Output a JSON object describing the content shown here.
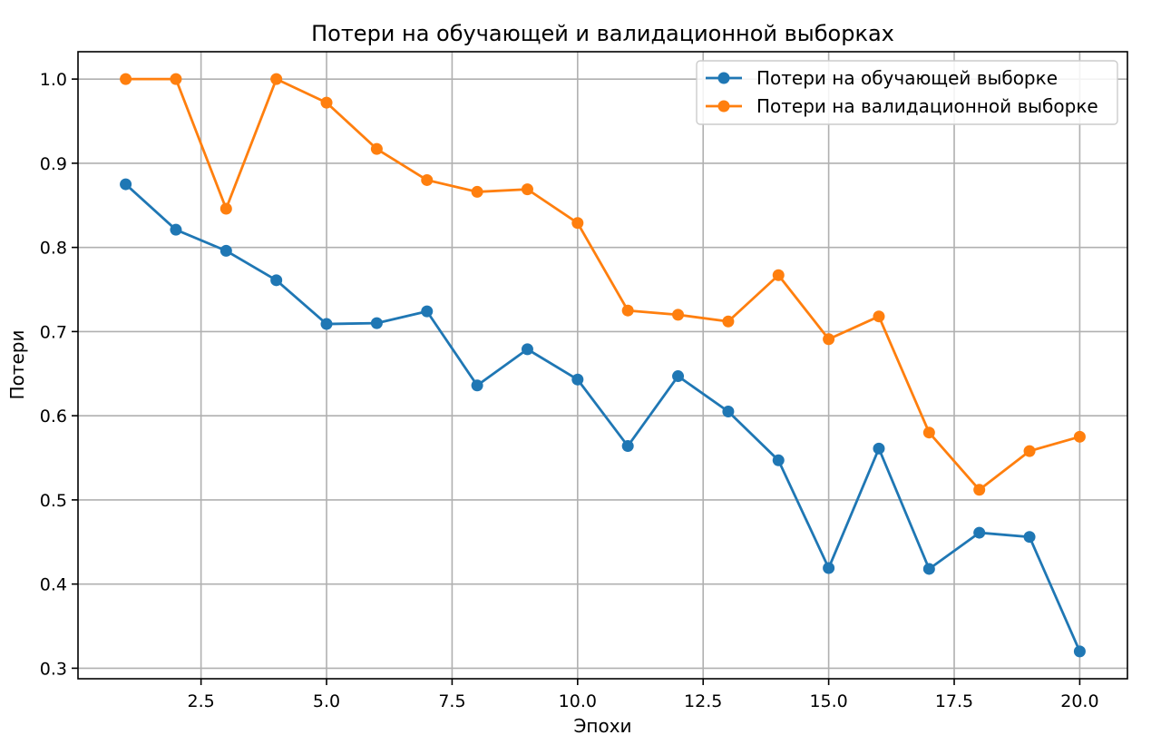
{
  "chart_data": {
    "type": "line",
    "title": "Потери на обучающей и валидационной выборках",
    "xlabel": "Эпохи",
    "ylabel": "Потери",
    "xlim": [
      0.05,
      20.95
    ],
    "ylim": [
      0.2875,
      1.0325
    ],
    "xticks": [
      2.5,
      5.0,
      7.5,
      10.0,
      12.5,
      15.0,
      17.5,
      20.0
    ],
    "xtick_labels": [
      "2.5",
      "5.0",
      "7.5",
      "10.0",
      "12.5",
      "15.0",
      "17.5",
      "20.0"
    ],
    "yticks": [
      0.3,
      0.4,
      0.5,
      0.6,
      0.7,
      0.8,
      0.9,
      1.0
    ],
    "ytick_labels": [
      "0.3",
      "0.4",
      "0.5",
      "0.6",
      "0.7",
      "0.8",
      "0.9",
      "1.0"
    ],
    "grid": true,
    "legend_position": "top-right",
    "x": [
      1,
      2,
      3,
      4,
      5,
      6,
      7,
      8,
      9,
      10,
      11,
      12,
      13,
      14,
      15,
      16,
      17,
      18,
      19,
      20
    ],
    "series": [
      {
        "name": "Потери на обучающей выборке",
        "color": "#1f77b4",
        "values": [
          0.875,
          0.821,
          0.796,
          0.761,
          0.709,
          0.71,
          0.724,
          0.636,
          0.679,
          0.643,
          0.564,
          0.647,
          0.605,
          0.547,
          0.419,
          0.561,
          0.418,
          0.461,
          0.456,
          0.32
        ]
      },
      {
        "name": "Потери на валидационной выборке",
        "color": "#ff7f0e",
        "values": [
          1.0,
          1.0,
          0.846,
          1.0,
          0.972,
          0.917,
          0.88,
          0.866,
          0.869,
          0.829,
          0.725,
          0.72,
          0.712,
          0.767,
          0.691,
          0.718,
          0.58,
          0.512,
          0.558,
          0.575
        ]
      }
    ]
  }
}
